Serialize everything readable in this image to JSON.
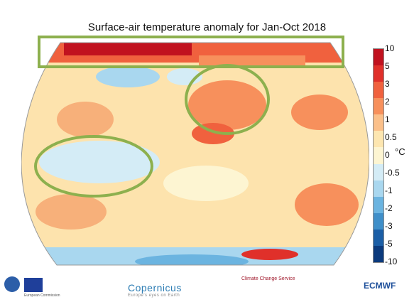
{
  "title": "Surface-air temperature anomaly for Jan-Oct 2018",
  "colorbar": {
    "labels": [
      "10",
      "5",
      "3",
      "2",
      "1",
      "0.5",
      "0",
      "-0.5",
      "-1",
      "-2",
      "-3",
      "-5",
      "-10"
    ],
    "unit": "°C",
    "colors": [
      "#c1121f",
      "#e0302a",
      "#f0613e",
      "#f7905c",
      "#fbc08a",
      "#fde6b0",
      "#fdf5d2",
      "#d4ecf6",
      "#a9d7ef",
      "#6bb4e0",
      "#3f8fc9",
      "#1b5ea6",
      "#0b3a7d"
    ]
  },
  "footer": {
    "copernicus": "Copernicus",
    "copernicus_tag": "Europe's eyes on Earth",
    "c3s": "Climate Change Service",
    "ecmwf": "ECMWF",
    "eu": "European Commission"
  }
}
